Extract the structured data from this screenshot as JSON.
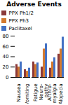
{
  "chart_data": {
    "type": "bar",
    "title": "Adverse Events",
    "categories": [
      "Nausea",
      "Vomiting",
      "Fatigue",
      "Neuro-\npathy",
      "Arthro-\nmyalgia",
      "Alopecia"
    ],
    "series": [
      {
        "name": "PPX Ph1/2",
        "color": "#8B3A3A",
        "values": [
          25,
          15,
          30,
          20,
          18,
          45
        ]
      },
      {
        "name": "PPX Ph3",
        "color": "#d47a30",
        "values": [
          20,
          12,
          25,
          55,
          30,
          55
        ]
      },
      {
        "name": "Paclitaxel",
        "color": "#4472c4",
        "values": [
          30,
          18,
          28,
          65,
          38,
          78
        ]
      }
    ],
    "ylim": [
      0,
      80
    ],
    "yticks": [
      0,
      20,
      40,
      60,
      80
    ],
    "legend": "upper left",
    "grid": false
  }
}
